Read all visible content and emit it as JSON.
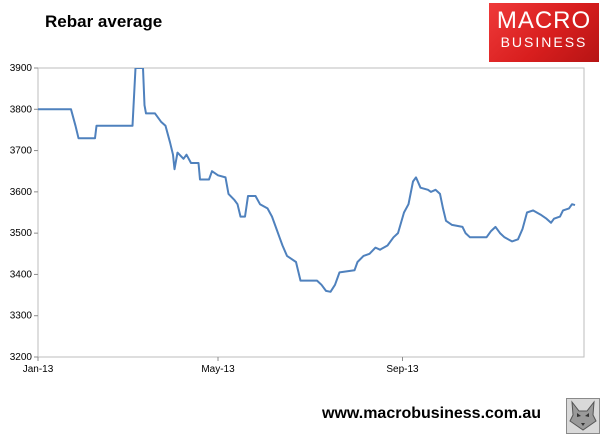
{
  "header": {
    "title": "Rebar average"
  },
  "logo": {
    "line1": "MACRO",
    "line2": "BUSINESS",
    "color": "#e0282a"
  },
  "footer": {
    "url": "www.macrobusiness.com.au",
    "badge_icon": "wolf-icon"
  },
  "chart_data": {
    "type": "line",
    "title": "Rebar average",
    "xlabel": "",
    "ylabel": "",
    "ylim": [
      3200,
      3900
    ],
    "yticks": [
      3200,
      3300,
      3400,
      3500,
      3600,
      3700,
      3800,
      3900
    ],
    "xlim": [
      "2013-01-01",
      "2013-12-31"
    ],
    "xticks": [
      {
        "date": "2013-01-01",
        "label": "Jan-13"
      },
      {
        "date": "2013-05-01",
        "label": "May-13"
      },
      {
        "date": "2013-09-01",
        "label": "Sep-13"
      }
    ],
    "grid": false,
    "line_color": "#4f81bd",
    "series": [
      {
        "name": "",
        "points": [
          [
            "2013-01-01",
            3800
          ],
          [
            "2013-01-23",
            3800
          ],
          [
            "2013-01-26",
            3760
          ],
          [
            "2013-01-28",
            3730
          ],
          [
            "2013-02-08",
            3730
          ],
          [
            "2013-02-09",
            3760
          ],
          [
            "2013-03-05",
            3760
          ],
          [
            "2013-03-07",
            3900
          ],
          [
            "2013-03-12",
            3900
          ],
          [
            "2013-03-13",
            3810
          ],
          [
            "2013-03-14",
            3790
          ],
          [
            "2013-03-20",
            3790
          ],
          [
            "2013-03-24",
            3770
          ],
          [
            "2013-03-27",
            3760
          ],
          [
            "2013-03-30",
            3720
          ],
          [
            "2013-04-01",
            3690
          ],
          [
            "2013-04-02",
            3655
          ],
          [
            "2013-04-04",
            3695
          ],
          [
            "2013-04-08",
            3680
          ],
          [
            "2013-04-10",
            3690
          ],
          [
            "2013-04-13",
            3670
          ],
          [
            "2013-04-18",
            3670
          ],
          [
            "2013-04-19",
            3630
          ],
          [
            "2013-04-25",
            3630
          ],
          [
            "2013-04-27",
            3650
          ],
          [
            "2013-05-01",
            3640
          ],
          [
            "2013-05-06",
            3635
          ],
          [
            "2013-05-08",
            3595
          ],
          [
            "2013-05-12",
            3580
          ],
          [
            "2013-05-14",
            3570
          ],
          [
            "2013-05-16",
            3540
          ],
          [
            "2013-05-19",
            3540
          ],
          [
            "2013-05-21",
            3590
          ],
          [
            "2013-05-26",
            3590
          ],
          [
            "2013-05-29",
            3570
          ],
          [
            "2013-06-03",
            3560
          ],
          [
            "2013-06-06",
            3540
          ],
          [
            "2013-06-09",
            3510
          ],
          [
            "2013-06-11",
            3490
          ],
          [
            "2013-06-13",
            3470
          ],
          [
            "2013-06-16",
            3445
          ],
          [
            "2013-06-18",
            3440
          ],
          [
            "2013-06-22",
            3430
          ],
          [
            "2013-06-25",
            3385
          ],
          [
            "2013-07-06",
            3385
          ],
          [
            "2013-07-09",
            3375
          ],
          [
            "2013-07-12",
            3360
          ],
          [
            "2013-07-15",
            3358
          ],
          [
            "2013-07-18",
            3375
          ],
          [
            "2013-07-21",
            3405
          ],
          [
            "2013-07-31",
            3410
          ],
          [
            "2013-08-02",
            3430
          ],
          [
            "2013-08-06",
            3445
          ],
          [
            "2013-08-10",
            3450
          ],
          [
            "2013-08-14",
            3465
          ],
          [
            "2013-08-17",
            3460
          ],
          [
            "2013-08-22",
            3470
          ],
          [
            "2013-08-26",
            3490
          ],
          [
            "2013-08-29",
            3500
          ],
          [
            "2013-09-02",
            3550
          ],
          [
            "2013-09-05",
            3570
          ],
          [
            "2013-09-08",
            3625
          ],
          [
            "2013-09-10",
            3635
          ],
          [
            "2013-09-13",
            3610
          ],
          [
            "2013-09-18",
            3605
          ],
          [
            "2013-09-20",
            3600
          ],
          [
            "2013-09-23",
            3605
          ],
          [
            "2013-09-26",
            3595
          ],
          [
            "2013-09-28",
            3560
          ],
          [
            "2013-09-30",
            3530
          ],
          [
            "2013-10-04",
            3520
          ],
          [
            "2013-10-11",
            3515
          ],
          [
            "2013-10-13",
            3500
          ],
          [
            "2013-10-16",
            3490
          ],
          [
            "2013-10-27",
            3490
          ],
          [
            "2013-10-30",
            3505
          ],
          [
            "2013-11-02",
            3515
          ],
          [
            "2013-11-05",
            3500
          ],
          [
            "2013-11-08",
            3490
          ],
          [
            "2013-11-13",
            3480
          ],
          [
            "2013-11-17",
            3485
          ],
          [
            "2013-11-20",
            3510
          ],
          [
            "2013-11-23",
            3550
          ],
          [
            "2013-11-27",
            3555
          ],
          [
            "2013-12-02",
            3545
          ],
          [
            "2013-12-06",
            3535
          ],
          [
            "2013-12-09",
            3525
          ],
          [
            "2013-12-11",
            3535
          ],
          [
            "2013-12-15",
            3540
          ],
          [
            "2013-12-17",
            3555
          ],
          [
            "2013-12-21",
            3560
          ],
          [
            "2013-12-23",
            3570
          ],
          [
            "2013-12-25",
            3568
          ]
        ]
      }
    ]
  }
}
